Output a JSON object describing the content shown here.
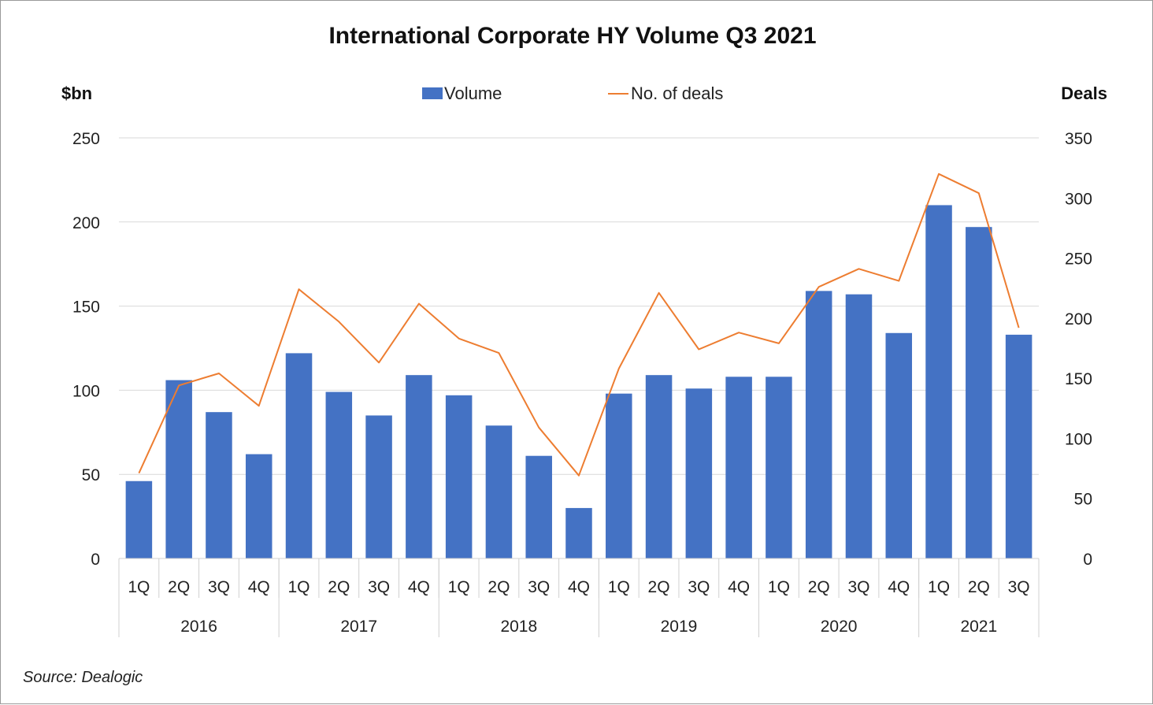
{
  "chart_data": {
    "type": "bar",
    "title": "International Corporate HY Volume Q3 2021",
    "ylabel_left": "$bn",
    "ylabel_right": "Deals",
    "source": "Source: Dealogic",
    "y_left_range": [
      0,
      250
    ],
    "y_left_ticks": [
      "0",
      "50",
      "100",
      "150",
      "200",
      "250"
    ],
    "y_right_range": [
      0,
      350
    ],
    "y_right_ticks": [
      "0",
      "50",
      "100",
      "150",
      "200",
      "250",
      "300",
      "350"
    ],
    "categories": [
      "1Q",
      "2Q",
      "3Q",
      "4Q",
      "1Q",
      "2Q",
      "3Q",
      "4Q",
      "1Q",
      "2Q",
      "3Q",
      "4Q",
      "1Q",
      "2Q",
      "3Q",
      "4Q",
      "1Q",
      "2Q",
      "3Q",
      "4Q",
      "1Q",
      "2Q",
      "3Q"
    ],
    "years": [
      {
        "label": "2016",
        "count": 4
      },
      {
        "label": "2017",
        "count": 4
      },
      {
        "label": "2018",
        "count": 4
      },
      {
        "label": "2019",
        "count": 4
      },
      {
        "label": "2020",
        "count": 4
      },
      {
        "label": "2021",
        "count": 3
      }
    ],
    "series": [
      {
        "name": "Volume",
        "type": "bar",
        "axis": "left",
        "color": "#4472c4",
        "values": [
          46,
          106,
          87,
          62,
          122,
          99,
          85,
          109,
          97,
          79,
          61,
          30,
          98,
          109,
          101,
          108,
          108,
          159,
          157,
          134,
          210,
          197,
          133
        ]
      },
      {
        "name": "No. of deals",
        "type": "line",
        "axis": "right",
        "color": "#ed7d31",
        "values": [
          71,
          144,
          154,
          127,
          224,
          197,
          163,
          212,
          183,
          171,
          109,
          69,
          158,
          221,
          174,
          188,
          179,
          226,
          241,
          231,
          320,
          304,
          192
        ]
      }
    ],
    "grid": true,
    "legend_position": "top-center"
  }
}
